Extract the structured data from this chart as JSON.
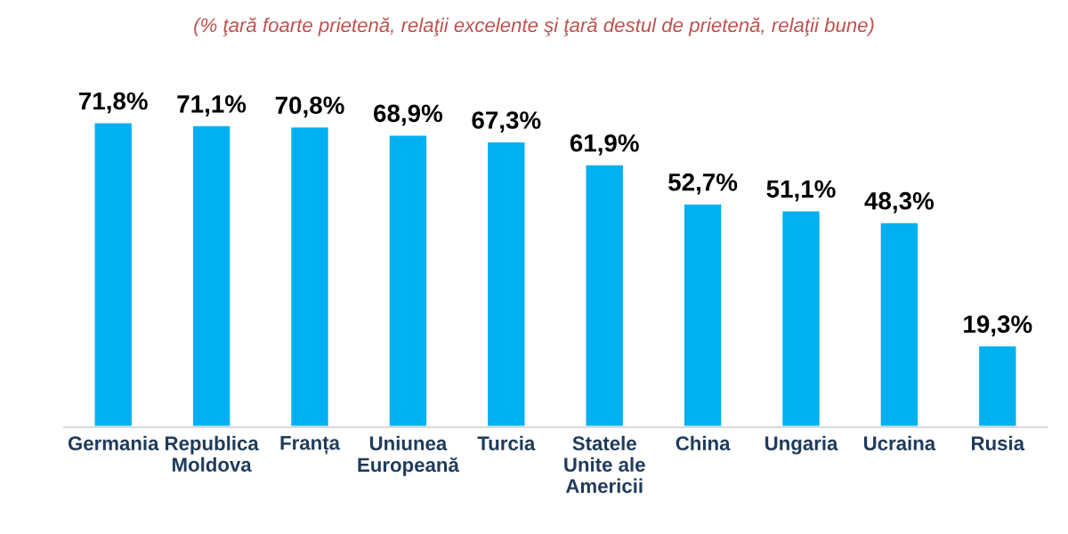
{
  "chart_data": {
    "type": "bar",
    "subtitle": "(% ţară foarte prietenă, relaţii excelente şi ţară destul de prietenă, relaţii bune)",
    "categories": [
      "Germania",
      "Republica\nMoldova",
      "Franța",
      "Uniunea\nEuropeană",
      "Turcia",
      "Statele\nUnite ale\nAmericii",
      "China",
      "Ungaria",
      "Ucraina",
      "Rusia"
    ],
    "values": [
      71.8,
      71.1,
      70.8,
      68.9,
      67.3,
      61.9,
      52.7,
      51.1,
      48.3,
      19.3
    ],
    "value_labels": [
      "71,8%",
      "71,1%",
      "70,8%",
      "68,9%",
      "67,3%",
      "61,9%",
      "52,7%",
      "51,1%",
      "48,3%",
      "19,3%"
    ],
    "color": "#00b0f0"
  }
}
